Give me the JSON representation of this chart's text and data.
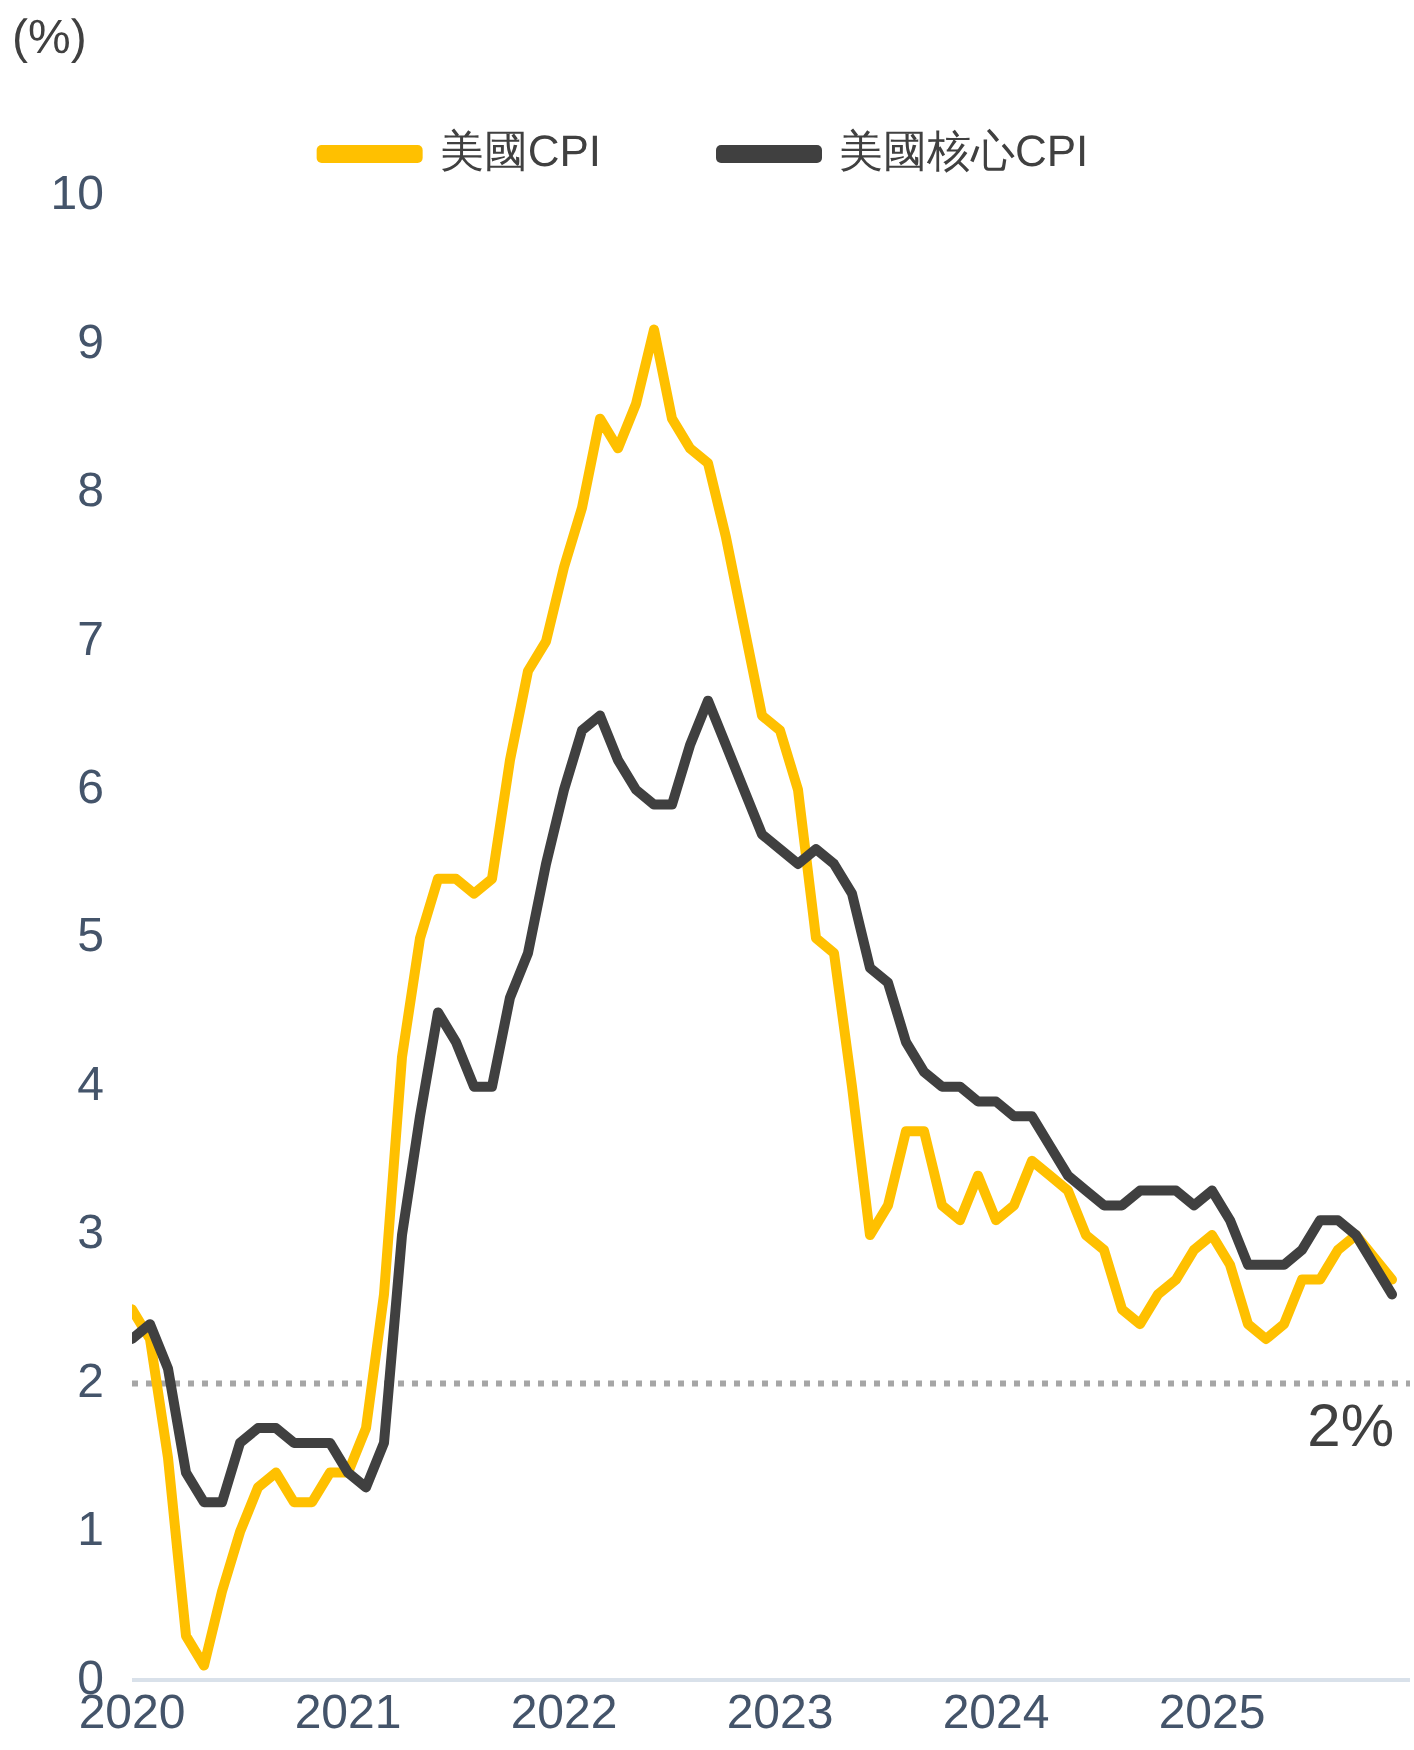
{
  "chart_data": {
    "type": "line",
    "ylabel": "(%)",
    "x": [
      "2020-01",
      "2020-02",
      "2020-03",
      "2020-04",
      "2020-05",
      "2020-06",
      "2020-07",
      "2020-08",
      "2020-09",
      "2020-10",
      "2020-11",
      "2020-12",
      "2021-01",
      "2021-02",
      "2021-03",
      "2021-04",
      "2021-05",
      "2021-06",
      "2021-07",
      "2021-08",
      "2021-09",
      "2021-10",
      "2021-11",
      "2021-12",
      "2022-01",
      "2022-02",
      "2022-03",
      "2022-04",
      "2022-05",
      "2022-06",
      "2022-07",
      "2022-08",
      "2022-09",
      "2022-10",
      "2022-11",
      "2022-12",
      "2023-01",
      "2023-02",
      "2023-03",
      "2023-04",
      "2023-05",
      "2023-06",
      "2023-07",
      "2023-08",
      "2023-09",
      "2023-10",
      "2023-11",
      "2023-12",
      "2024-01",
      "2024-02",
      "2024-03",
      "2024-04",
      "2024-05",
      "2024-06",
      "2024-07",
      "2024-08",
      "2024-09",
      "2024-10",
      "2024-11",
      "2024-12",
      "2025-01",
      "2025-02",
      "2025-03",
      "2025-04",
      "2025-05",
      "2025-06",
      "2025-07",
      "2025-08",
      "2025-09",
      "2025-11"
    ],
    "series": [
      {
        "name": "美國CPI",
        "color": "#ffc000",
        "values": [
          2.5,
          2.3,
          1.5,
          0.3,
          0.1,
          0.6,
          1.0,
          1.3,
          1.4,
          1.2,
          1.2,
          1.4,
          1.4,
          1.7,
          2.6,
          4.2,
          5.0,
          5.4,
          5.4,
          5.3,
          5.4,
          6.2,
          6.8,
          7.0,
          7.5,
          7.9,
          8.5,
          8.3,
          8.6,
          9.1,
          8.5,
          8.3,
          8.2,
          7.7,
          7.1,
          6.5,
          6.4,
          6.0,
          5.0,
          4.9,
          4.0,
          3.0,
          3.2,
          3.7,
          3.7,
          3.2,
          3.1,
          3.4,
          3.1,
          3.2,
          3.5,
          3.4,
          3.3,
          3.0,
          2.9,
          2.5,
          2.4,
          2.6,
          2.7,
          2.9,
          3.0,
          2.8,
          2.4,
          2.3,
          2.4,
          2.7,
          2.7,
          2.9,
          3.0,
          2.7
        ]
      },
      {
        "name": "美國核心CPI",
        "color": "#404040",
        "values": [
          2.3,
          2.4,
          2.1,
          1.4,
          1.2,
          1.2,
          1.6,
          1.7,
          1.7,
          1.6,
          1.6,
          1.6,
          1.4,
          1.3,
          1.6,
          3.0,
          3.8,
          4.5,
          4.3,
          4.0,
          4.0,
          4.6,
          4.9,
          5.5,
          6.0,
          6.4,
          6.5,
          6.2,
          6.0,
          5.9,
          5.9,
          6.3,
          6.6,
          6.3,
          6.0,
          5.7,
          5.6,
          5.5,
          5.6,
          5.5,
          5.3,
          4.8,
          4.7,
          4.3,
          4.1,
          4.0,
          4.0,
          3.9,
          3.9,
          3.8,
          3.8,
          3.6,
          3.4,
          3.3,
          3.2,
          3.2,
          3.3,
          3.3,
          3.3,
          3.2,
          3.3,
          3.1,
          2.8,
          2.8,
          2.8,
          2.9,
          3.1,
          3.1,
          3.0,
          2.6
        ]
      }
    ],
    "xlim": [
      "2020-01",
      "2025-12"
    ],
    "xticks": [
      {
        "value": "2020-01",
        "label": "2020"
      },
      {
        "value": "2021-01",
        "label": "2021"
      },
      {
        "value": "2022-01",
        "label": "2022"
      },
      {
        "value": "2023-01",
        "label": "2023"
      },
      {
        "value": "2024-01",
        "label": "2024"
      },
      {
        "value": "2025-01",
        "label": "2025"
      }
    ],
    "ylim": [
      0,
      10
    ],
    "yticks": [
      0,
      1,
      2,
      3,
      4,
      5,
      6,
      7,
      8,
      9,
      10
    ],
    "ref_lines": [
      {
        "axis": "y",
        "value": 2,
        "label": "2%",
        "color": "#a6a6a6",
        "line_style": "dotted"
      }
    ],
    "grid": false,
    "legend": "top",
    "marker": "none",
    "line_style": "solid"
  }
}
